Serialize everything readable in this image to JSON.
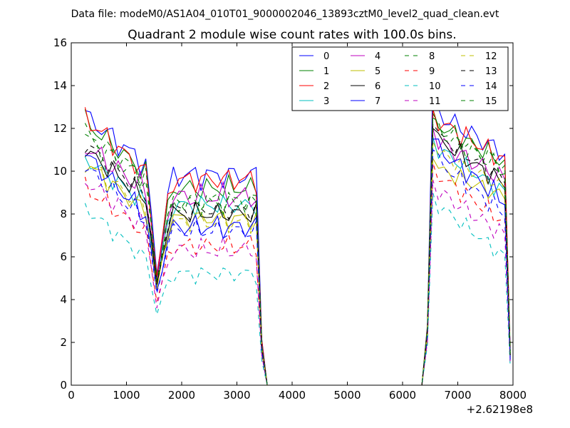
{
  "suptitle": "Data file: modeM0/AS1A04_010T01_9000002046_13893cztM0_level2_quad_clean.evt",
  "chart_data": {
    "type": "line",
    "title": "Quadrant 2 module wise count rates with 100.0s bins.",
    "xlabel": "",
    "ylabel": "",
    "x_offset_label": "+2.62198e8",
    "xlim": [
      0,
      8000
    ],
    "ylim": [
      0,
      16
    ],
    "xticks": [
      0,
      1000,
      2000,
      3000,
      4000,
      5000,
      6000,
      7000,
      8000
    ],
    "xtick_labels": [
      "0",
      "1000",
      "2000",
      "3000",
      "4000",
      "5000",
      "6000",
      "7000",
      "8000"
    ],
    "yticks": [
      0,
      2,
      4,
      6,
      8,
      10,
      12,
      14,
      16
    ],
    "ytick_labels": [
      "0",
      "2",
      "4",
      "6",
      "8",
      "10",
      "12",
      "14",
      "16"
    ],
    "grid": false,
    "legend_position": "top-right",
    "legend_columns": 4,
    "x_segment1": [
      250,
      350,
      450,
      550,
      650,
      750,
      850,
      950,
      1050,
      1150,
      1250,
      1350,
      1450,
      1550,
      1650,
      1750,
      1850,
      1950,
      2050,
      2150,
      2250,
      2350,
      2450,
      2550,
      2650,
      2750,
      2850,
      2950,
      3050,
      3150,
      3250,
      3350
    ],
    "x_segment2": [
      6550,
      6650,
      6750,
      6850,
      6950,
      7050,
      7150,
      7250,
      7350,
      7450,
      7550,
      7650,
      7750,
      7850
    ],
    "gap_points": [
      [
        3450,
        2.0
      ],
      [
        3550,
        0
      ],
      [
        6350,
        0
      ],
      [
        6450,
        2.0
      ]
    ],
    "end_point_x": 7950,
    "series": [
      {
        "name": "0",
        "color": "#0000ff",
        "dash": "solid",
        "base1": 12.6,
        "end1": 10.2,
        "dip": 5.2,
        "mid": 9.8,
        "base2": 12.8,
        "end2": 10.8,
        "amp": 0.45,
        "peak": 14.3,
        "tail": 1.6,
        "ph": 0.3
      },
      {
        "name": "1",
        "color": "#008000",
        "dash": "solid",
        "base1": 12.3,
        "end1": 9.8,
        "dip": 5.0,
        "mid": 9.2,
        "base2": 12.3,
        "end2": 10.4,
        "amp": 0.4,
        "peak": 12.9,
        "tail": 1.5,
        "ph": 1.1
      },
      {
        "name": "2",
        "color": "#ff0000",
        "dash": "solid",
        "base1": 12.5,
        "end1": 9.8,
        "dip": 5.1,
        "mid": 9.6,
        "base2": 12.5,
        "end2": 10.5,
        "amp": 0.4,
        "peak": 12.9,
        "tail": 1.6,
        "ph": 2.0
      },
      {
        "name": "3",
        "color": "#00bfbf",
        "dash": "solid",
        "base1": 10.6,
        "end1": 8.4,
        "dip": 4.6,
        "mid": 8.4,
        "base2": 11.2,
        "end2": 9.0,
        "amp": 0.35,
        "peak": 11.6,
        "tail": 1.3,
        "ph": 2.7
      },
      {
        "name": "4",
        "color": "#bf00bf",
        "dash": "solid",
        "base1": 11.2,
        "end1": 9.0,
        "dip": 4.8,
        "mid": 8.8,
        "base2": 11.5,
        "end2": 9.6,
        "amp": 0.45,
        "peak": 12.0,
        "tail": 1.4,
        "ph": 3.4
      },
      {
        "name": "5",
        "color": "#bfbf00",
        "dash": "solid",
        "base1": 10.4,
        "end1": 8.0,
        "dip": 4.5,
        "mid": 7.8,
        "base2": 10.2,
        "end2": 8.8,
        "amp": 0.35,
        "peak": 10.6,
        "tail": 1.3,
        "ph": 4.1
      },
      {
        "name": "6",
        "color": "#000000",
        "dash": "solid",
        "base1": 11.0,
        "end1": 8.6,
        "dip": 4.7,
        "mid": 8.0,
        "base2": 11.6,
        "end2": 9.4,
        "amp": 0.35,
        "peak": 12.0,
        "tail": 1.4,
        "ph": 4.9
      },
      {
        "name": "7",
        "color": "#0000ff",
        "dash": "solid",
        "base1": 10.8,
        "end1": 7.8,
        "dip": 4.4,
        "mid": 7.4,
        "base2": 11.2,
        "end2": 8.6,
        "amp": 0.4,
        "peak": 11.5,
        "tail": 1.3,
        "ph": 5.6
      },
      {
        "name": "8",
        "color": "#008000",
        "dash": "dashed",
        "base1": 11.8,
        "end1": 9.6,
        "dip": 4.9,
        "mid": 8.5,
        "base2": 12.2,
        "end2": 10.2,
        "amp": 0.4,
        "peak": 12.7,
        "tail": 1.5,
        "ph": 0.7
      },
      {
        "name": "9",
        "color": "#ff0000",
        "dash": "dashed",
        "base1": 9.2,
        "end1": 7.0,
        "dip": 3.9,
        "mid": 6.5,
        "base2": 10.0,
        "end2": 7.6,
        "amp": 0.35,
        "peak": 10.4,
        "tail": 1.2,
        "ph": 1.6
      },
      {
        "name": "10",
        "color": "#00bfbf",
        "dash": "dashed",
        "base1": 8.3,
        "end1": 5.8,
        "dip": 3.3,
        "mid": 5.2,
        "base2": 8.6,
        "end2": 6.0,
        "amp": 0.3,
        "peak": 9.0,
        "tail": 0.9,
        "ph": 2.4
      },
      {
        "name": "11",
        "color": "#bf00bf",
        "dash": "dashed",
        "base1": 9.6,
        "end1": 7.2,
        "dip": 3.6,
        "mid": 6.3,
        "base2": 9.2,
        "end2": 7.0,
        "amp": 0.4,
        "peak": 9.6,
        "tail": 1.1,
        "ph": 3.1
      },
      {
        "name": "12",
        "color": "#bfbf00",
        "dash": "dashed",
        "base1": 10.4,
        "end1": 8.2,
        "dip": 4.5,
        "mid": 7.6,
        "base2": 11.0,
        "end2": 9.2,
        "amp": 0.35,
        "peak": 11.4,
        "tail": 1.3,
        "ph": 3.8
      },
      {
        "name": "13",
        "color": "#000000",
        "dash": "dashed",
        "base1": 11.3,
        "end1": 8.8,
        "dip": 4.8,
        "mid": 8.2,
        "base2": 11.8,
        "end2": 9.6,
        "amp": 0.35,
        "peak": 12.2,
        "tail": 1.4,
        "ph": 4.5
      },
      {
        "name": "14",
        "color": "#0000ff",
        "dash": "dashed",
        "base1": 10.2,
        "end1": 7.6,
        "dip": 4.3,
        "mid": 7.2,
        "base2": 10.6,
        "end2": 8.0,
        "amp": 0.35,
        "peak": 11.0,
        "tail": 1.2,
        "ph": 5.2
      },
      {
        "name": "15",
        "color": "#008000",
        "dash": "dashed",
        "base1": 11.6,
        "end1": 9.4,
        "dip": 4.9,
        "mid": 8.6,
        "base2": 12.0,
        "end2": 10.0,
        "amp": 0.4,
        "peak": 12.5,
        "tail": 1.5,
        "ph": 6.0
      }
    ]
  }
}
